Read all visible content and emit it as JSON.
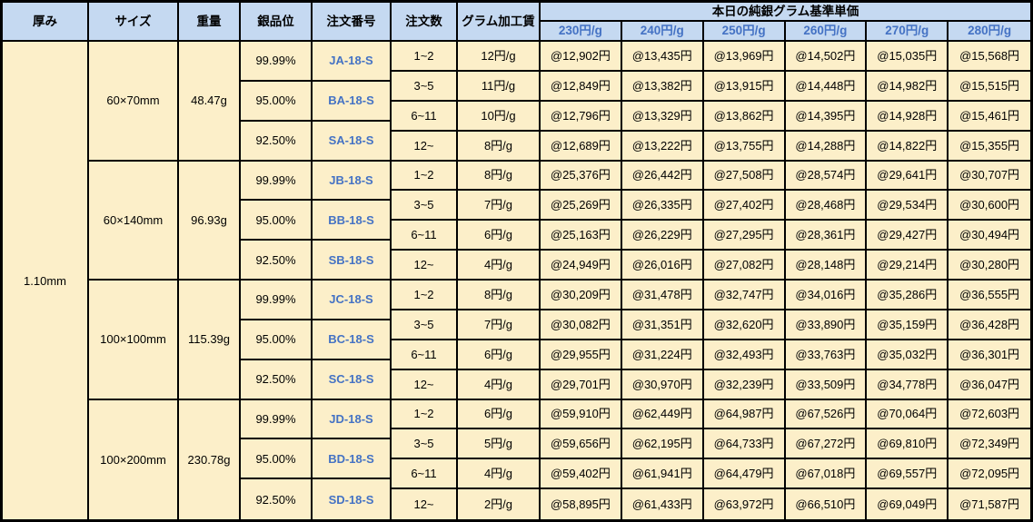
{
  "colors": {
    "header_bg": "#C5D9F1",
    "body_bg": "#FCEFC9",
    "accent_blue": "#4472C4",
    "border": "#000000"
  },
  "table": {
    "column_headers": [
      "厚み",
      "サイズ",
      "重量",
      "銀品位",
      "注文番号",
      "注文数",
      "グラム加工賃"
    ],
    "price_header": {
      "title": "本日の純銀グラム基準単価",
      "columns": [
        "230円/g",
        "240円/g",
        "250円/g",
        "260円/g",
        "270円/g",
        "280円/g"
      ]
    },
    "thickness": "1.10mm",
    "blocks": [
      {
        "size": "60×70mm",
        "weight": "48.47g",
        "purities": [
          {
            "purity": "99.99%",
            "order_no": "JA-18-S"
          },
          {
            "purity": "95.00%",
            "order_no": "BA-18-S"
          },
          {
            "purity": "92.50%",
            "order_no": "SA-18-S"
          }
        ],
        "rows": [
          {
            "qty": "1~2",
            "fee": "12円/g",
            "prices": [
              "@12,902円",
              "@13,435円",
              "@13,969円",
              "@14,502円",
              "@15,035円",
              "@15,568円"
            ]
          },
          {
            "qty": "3~5",
            "fee": "11円/g",
            "prices": [
              "@12,849円",
              "@13,382円",
              "@13,915円",
              "@14,448円",
              "@14,982円",
              "@15,515円"
            ]
          },
          {
            "qty": "6~11",
            "fee": "10円/g",
            "prices": [
              "@12,796円",
              "@13,329円",
              "@13,862円",
              "@14,395円",
              "@14,928円",
              "@15,461円"
            ]
          },
          {
            "qty": "12~",
            "fee": "8円/g",
            "prices": [
              "@12,689円",
              "@13,222円",
              "@13,755円",
              "@14,288円",
              "@14,822円",
              "@15,355円"
            ]
          }
        ]
      },
      {
        "size": "60×140mm",
        "weight": "96.93g",
        "purities": [
          {
            "purity": "99.99%",
            "order_no": "JB-18-S"
          },
          {
            "purity": "95.00%",
            "order_no": "BB-18-S"
          },
          {
            "purity": "92.50%",
            "order_no": "SB-18-S"
          }
        ],
        "rows": [
          {
            "qty": "1~2",
            "fee": "8円/g",
            "prices": [
              "@25,376円",
              "@26,442円",
              "@27,508円",
              "@28,574円",
              "@29,641円",
              "@30,707円"
            ]
          },
          {
            "qty": "3~5",
            "fee": "7円/g",
            "prices": [
              "@25,269円",
              "@26,335円",
              "@27,402円",
              "@28,468円",
              "@29,534円",
              "@30,600円"
            ]
          },
          {
            "qty": "6~11",
            "fee": "6円/g",
            "prices": [
              "@25,163円",
              "@26,229円",
              "@27,295円",
              "@28,361円",
              "@29,427円",
              "@30,494円"
            ]
          },
          {
            "qty": "12~",
            "fee": "4円/g",
            "prices": [
              "@24,949円",
              "@26,016円",
              "@27,082円",
              "@28,148円",
              "@29,214円",
              "@30,280円"
            ]
          }
        ]
      },
      {
        "size": "100×100mm",
        "weight": "115.39g",
        "purities": [
          {
            "purity": "99.99%",
            "order_no": "JC-18-S"
          },
          {
            "purity": "95.00%",
            "order_no": "BC-18-S"
          },
          {
            "purity": "92.50%",
            "order_no": "SC-18-S"
          }
        ],
        "rows": [
          {
            "qty": "1~2",
            "fee": "8円/g",
            "prices": [
              "@30,209円",
              "@31,478円",
              "@32,747円",
              "@34,016円",
              "@35,286円",
              "@36,555円"
            ]
          },
          {
            "qty": "3~5",
            "fee": "7円/g",
            "prices": [
              "@30,082円",
              "@31,351円",
              "@32,620円",
              "@33,890円",
              "@35,159円",
              "@36,428円"
            ]
          },
          {
            "qty": "6~11",
            "fee": "6円/g",
            "prices": [
              "@29,955円",
              "@31,224円",
              "@32,493円",
              "@33,763円",
              "@35,032円",
              "@36,301円"
            ]
          },
          {
            "qty": "12~",
            "fee": "4円/g",
            "prices": [
              "@29,701円",
              "@30,970円",
              "@32,239円",
              "@33,509円",
              "@34,778円",
              "@36,047円"
            ]
          }
        ]
      },
      {
        "size": "100×200mm",
        "weight": "230.78g",
        "purities": [
          {
            "purity": "99.99%",
            "order_no": "JD-18-S"
          },
          {
            "purity": "95.00%",
            "order_no": "BD-18-S"
          },
          {
            "purity": "92.50%",
            "order_no": "SD-18-S"
          }
        ],
        "rows": [
          {
            "qty": "1~2",
            "fee": "6円/g",
            "prices": [
              "@59,910円",
              "@62,449円",
              "@64,987円",
              "@67,526円",
              "@70,064円",
              "@72,603円"
            ]
          },
          {
            "qty": "3~5",
            "fee": "5円/g",
            "prices": [
              "@59,656円",
              "@62,195円",
              "@64,733円",
              "@67,272円",
              "@69,810円",
              "@72,349円"
            ]
          },
          {
            "qty": "6~11",
            "fee": "4円/g",
            "prices": [
              "@59,402円",
              "@61,941円",
              "@64,479円",
              "@67,018円",
              "@69,557円",
              "@72,095円"
            ]
          },
          {
            "qty": "12~",
            "fee": "2円/g",
            "prices": [
              "@58,895円",
              "@61,433円",
              "@63,972円",
              "@66,510円",
              "@69,049円",
              "@71,587円"
            ]
          }
        ]
      }
    ]
  }
}
